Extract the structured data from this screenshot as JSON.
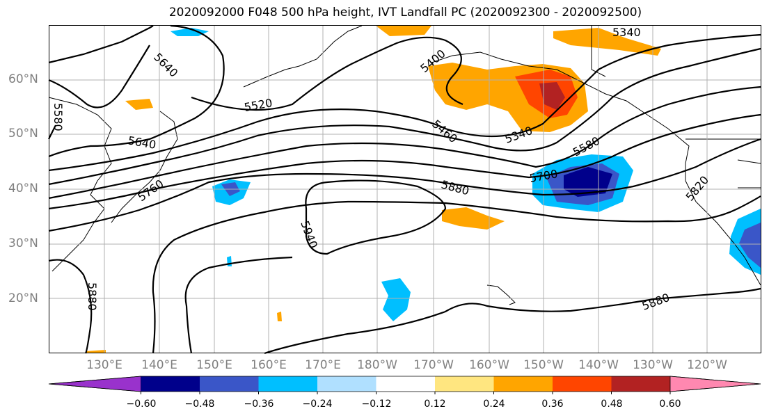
{
  "title": "2020092000 F048 500 hPa height, IVT Landfall PC (2020092300 - 2020092500)",
  "lat_labels": [
    "60°N",
    "50°N",
    "40°N",
    "30°N",
    "20°N"
  ],
  "lon_labels": [
    "130°E",
    "140°E",
    "150°E",
    "160°E",
    "170°E",
    "180°W",
    "170°W",
    "160°W",
    "150°W",
    "140°W",
    "130°W",
    "120°W"
  ],
  "contour_labels": [
    "5640",
    "5580",
    "5520",
    "5640",
    "5760",
    "5940",
    "5880",
    "5400",
    "5460",
    "5340",
    "5340",
    "5580",
    "5700",
    "5880",
    "5820",
    "5880"
  ],
  "colorbar": {
    "ticks": [
      "−0.60",
      "−0.48",
      "−0.36",
      "−0.24",
      "−0.12",
      "0.12",
      "0.24",
      "0.36",
      "0.48",
      "0.60"
    ],
    "colors": [
      "#9932CC",
      "#00008B",
      "#3A56C8",
      "#00BFFF",
      "#B0E0FF",
      "#FFFFFF",
      "#FFE680",
      "#FFA500",
      "#FF4500",
      "#B22222",
      "#FF88B0"
    ]
  },
  "colors": {
    "grid": "#b0b0b0",
    "axis_text": "#808080",
    "contour": "#000000"
  }
}
